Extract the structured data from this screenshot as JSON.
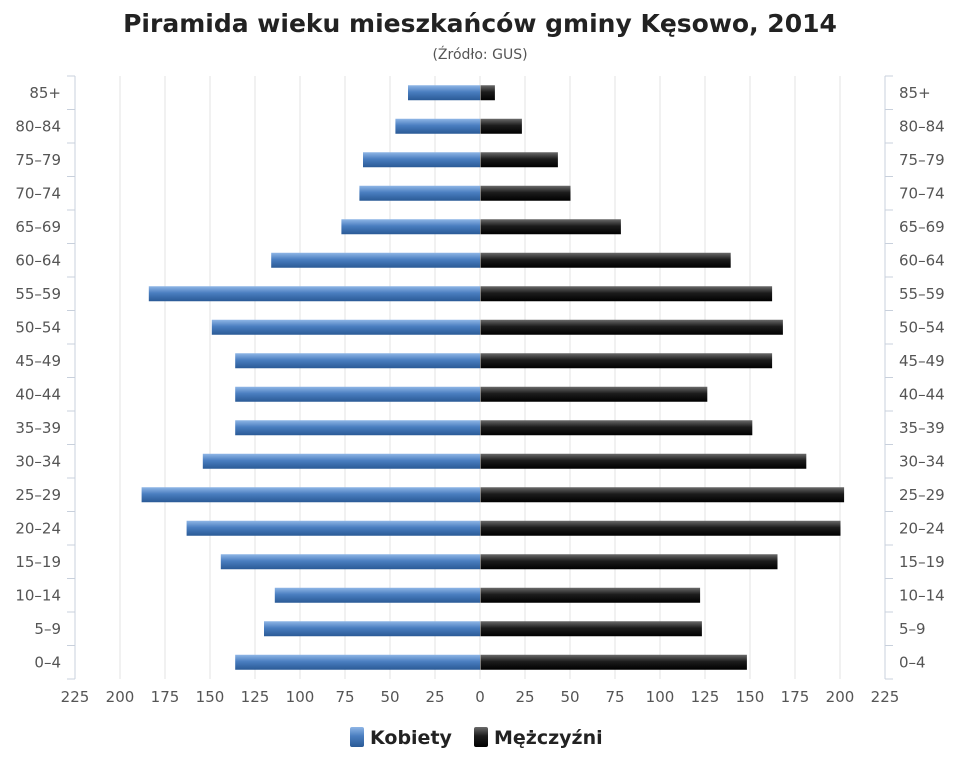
{
  "chart_data": {
    "type": "bar",
    "orientation": "horizontal",
    "layout": "population-pyramid",
    "title": "Piramida wieku mieszkańców gminy Kęsowo, 2014",
    "subtitle": "(Źródło: GUS)",
    "categories": [
      "0–4",
      "5–9",
      "10–14",
      "15–19",
      "20–24",
      "25–29",
      "30–34",
      "35–39",
      "40–44",
      "45–49",
      "50–54",
      "55–59",
      "60–64",
      "65–69",
      "70–74",
      "75–79",
      "80–84",
      "85+"
    ],
    "series": [
      {
        "name": "Kobiety",
        "side": "left",
        "color": "#4a7ec0",
        "values": [
          136,
          120,
          114,
          144,
          163,
          188,
          154,
          136,
          136,
          136,
          149,
          184,
          116,
          77,
          67,
          65,
          47,
          40
        ]
      },
      {
        "name": "Mężczyźni",
        "side": "right",
        "color": "#1c1c1c",
        "values": [
          148,
          123,
          122,
          165,
          200,
          202,
          181,
          151,
          126,
          162,
          168,
          162,
          139,
          78,
          50,
          43,
          23,
          8
        ]
      }
    ],
    "xlim": [
      -225,
      225
    ],
    "x_ticks": [
      225,
      200,
      175,
      150,
      125,
      100,
      75,
      50,
      25,
      0,
      25,
      50,
      75,
      100,
      125,
      150,
      175,
      200,
      225
    ],
    "grid": true,
    "legend_position": "bottom-center"
  }
}
